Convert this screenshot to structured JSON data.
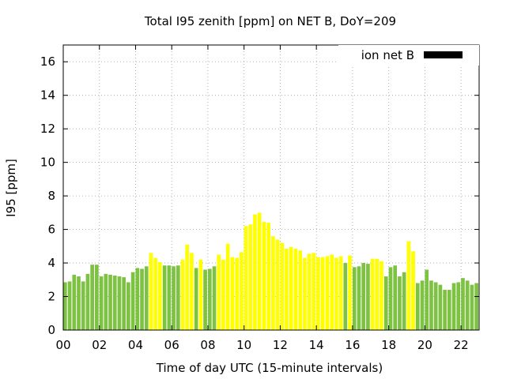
{
  "chart_data": {
    "type": "bar",
    "title": "Total I95 zenith [ppm] on NET B, DoY=209",
    "xlabel": "Time of day UTC (15-minute intervals)",
    "ylabel": "I95 [ppm]",
    "xlim": [
      0,
      23
    ],
    "ylim": [
      0,
      17
    ],
    "yticks": [
      0,
      2,
      4,
      6,
      8,
      10,
      12,
      14,
      16
    ],
    "xticks": [
      0,
      2,
      4,
      6,
      8,
      10,
      12,
      14,
      16,
      18,
      20,
      22
    ],
    "xtick_labels": [
      "00",
      "02",
      "04",
      "06",
      "08",
      "10",
      "12",
      "14",
      "16",
      "18",
      "20",
      "22"
    ],
    "grid": true,
    "legend": {
      "label": "ion net B",
      "color": "#000000",
      "position": "top-right"
    },
    "colors": {
      "green": "#7dc242",
      "yellow": "#ffff00"
    },
    "interval_hours": 0.25,
    "values": [
      2.85,
      2.9,
      3.3,
      3.2,
      2.9,
      3.35,
      3.9,
      3.9,
      3.2,
      3.35,
      3.3,
      3.25,
      3.2,
      3.15,
      2.85,
      3.45,
      3.7,
      3.65,
      3.8,
      4.6,
      4.3,
      4.05,
      3.85,
      3.85,
      3.8,
      3.85,
      4.2,
      5.1,
      4.6,
      3.7,
      4.2,
      3.6,
      3.65,
      3.8,
      4.5,
      4.2,
      5.15,
      4.35,
      4.3,
      4.65,
      6.2,
      6.3,
      6.9,
      7.0,
      6.45,
      6.4,
      5.6,
      5.4,
      5.2,
      4.85,
      4.95,
      4.85,
      4.75,
      4.3,
      4.55,
      4.6,
      4.35,
      4.35,
      4.4,
      4.5,
      4.3,
      4.4,
      4.0,
      4.45,
      3.75,
      3.8,
      4.0,
      3.95,
      4.25,
      4.25,
      4.1,
      3.2,
      3.75,
      3.85,
      3.2,
      3.45,
      5.3,
      4.7,
      2.8,
      2.95,
      3.6,
      2.95,
      2.85,
      2.7,
      2.4,
      2.4,
      2.8,
      2.85,
      3.1,
      2.95,
      2.7,
      2.8
    ],
    "bar_colors": [
      "green",
      "green",
      "green",
      "green",
      "green",
      "green",
      "green",
      "green",
      "green",
      "green",
      "green",
      "green",
      "green",
      "green",
      "green",
      "green",
      "green",
      "green",
      "green",
      "yellow",
      "yellow",
      "yellow",
      "green",
      "green",
      "green",
      "green",
      "yellow",
      "yellow",
      "yellow",
      "green",
      "yellow",
      "green",
      "green",
      "green",
      "yellow",
      "yellow",
      "yellow",
      "yellow",
      "yellow",
      "yellow",
      "yellow",
      "yellow",
      "yellow",
      "yellow",
      "yellow",
      "yellow",
      "yellow",
      "yellow",
      "yellow",
      "yellow",
      "yellow",
      "yellow",
      "yellow",
      "yellow",
      "yellow",
      "yellow",
      "yellow",
      "yellow",
      "yellow",
      "yellow",
      "yellow",
      "yellow",
      "green",
      "yellow",
      "green",
      "green",
      "green",
      "green",
      "yellow",
      "yellow",
      "yellow",
      "green",
      "green",
      "green",
      "green",
      "green",
      "yellow",
      "yellow",
      "green",
      "green",
      "green",
      "green",
      "green",
      "green",
      "green",
      "green",
      "green",
      "green",
      "green",
      "green",
      "green",
      "green"
    ]
  }
}
